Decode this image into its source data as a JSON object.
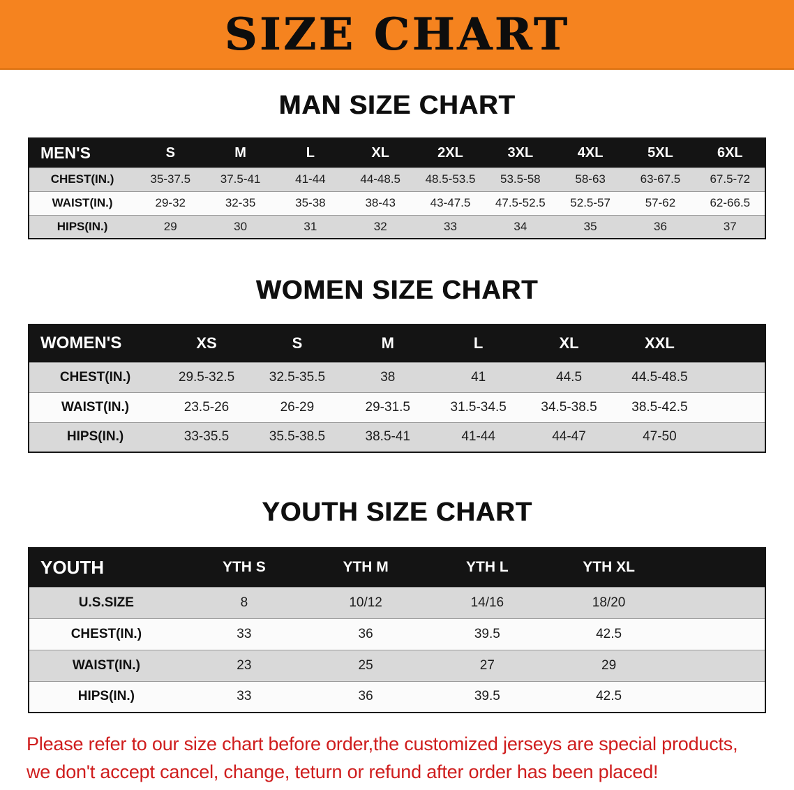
{
  "banner": {
    "title": "SIZE CHART"
  },
  "men": {
    "heading": "MAN SIZE CHART",
    "header": [
      "MEN'S",
      "S",
      "M",
      "L",
      "XL",
      "2XL",
      "3XL",
      "4XL",
      "5XL",
      "6XL"
    ],
    "rows": [
      {
        "label": "CHEST(IN.)",
        "values": [
          "35-37.5",
          "37.5-41",
          "41-44",
          "44-48.5",
          "48.5-53.5",
          "53.5-58",
          "58-63",
          "63-67.5",
          "67.5-72"
        ]
      },
      {
        "label": "WAIST(IN.)",
        "values": [
          "29-32",
          "32-35",
          "35-38",
          "38-43",
          "43-47.5",
          "47.5-52.5",
          "52.5-57",
          "57-62",
          "62-66.5"
        ]
      },
      {
        "label": "HIPS(IN.)",
        "values": [
          "29",
          "30",
          "31",
          "32",
          "33",
          "34",
          "35",
          "36",
          "37"
        ]
      }
    ]
  },
  "women": {
    "heading": "WOMEN SIZE CHART",
    "header": [
      "WOMEN'S",
      "XS",
      "S",
      "M",
      "L",
      "XL",
      "XXL"
    ],
    "rows": [
      {
        "label": "CHEST(IN.)",
        "values": [
          "29.5-32.5",
          "32.5-35.5",
          "38",
          "41",
          "44.5",
          "44.5-48.5"
        ]
      },
      {
        "label": "WAIST(IN.)",
        "values": [
          "23.5-26",
          "26-29",
          "29-31.5",
          "31.5-34.5",
          "34.5-38.5",
          "38.5-42.5"
        ]
      },
      {
        "label": "HIPS(IN.)",
        "values": [
          "33-35.5",
          "35.5-38.5",
          "38.5-41",
          "41-44",
          "44-47",
          "47-50"
        ]
      }
    ]
  },
  "youth": {
    "heading": "YOUTH SIZE CHART",
    "header": [
      "YOUTH",
      "YTH S",
      "YTH M",
      "YTH L",
      "YTH XL"
    ],
    "rows": [
      {
        "label": "U.S.SIZE",
        "values": [
          "8",
          "10/12",
          "14/16",
          "18/20"
        ]
      },
      {
        "label": "CHEST(IN.)",
        "values": [
          "33",
          "36",
          "39.5",
          "42.5"
        ]
      },
      {
        "label": "WAIST(IN.)",
        "values": [
          "23",
          "25",
          "27",
          "29"
        ]
      },
      {
        "label": "HIPS(IN.)",
        "values": [
          "33",
          "36",
          "39.5",
          "42.5"
        ]
      }
    ]
  },
  "disclaimer": {
    "line1": "Please refer to our size chart before order,the customized jerseys are special products,",
    "line2": "we don't accept cancel, change, teturn or refund after order has been placed!"
  },
  "colors": {
    "banner_orange": "#f5831f",
    "header_black": "#141414",
    "stripe_gray": "#d9d9d9",
    "disclaimer_red": "#cf1d1d"
  }
}
